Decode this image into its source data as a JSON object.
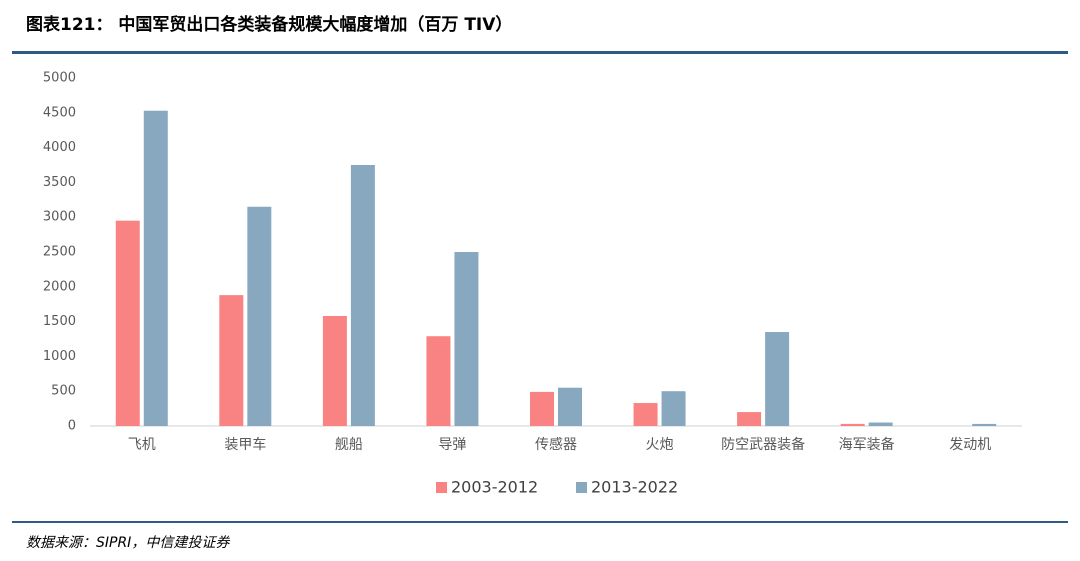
{
  "chart_data": {
    "type": "bar",
    "title": "图表121： 中国军贸出口各类装备规模大幅度增加（百万 TIV）",
    "source": "数据来源：SIPRI，中信建投证券",
    "categories": [
      "飞机",
      "装甲车",
      "舰船",
      "导弹",
      "传感器",
      "火炮",
      "防空武器装备",
      "海军装备",
      "发动机"
    ],
    "series": [
      {
        "name": "2003-2012",
        "color": "#f98282",
        "values": [
          2950,
          1880,
          1580,
          1290,
          490,
          330,
          200,
          30,
          0
        ]
      },
      {
        "name": "2013-2022",
        "color": "#88a8c0",
        "values": [
          4530,
          3150,
          3750,
          2500,
          550,
          500,
          1350,
          50,
          30
        ]
      }
    ],
    "ylim": [
      0,
      5000
    ],
    "yticks": [
      0,
      500,
      1000,
      1500,
      2000,
      2500,
      3000,
      3500,
      4000,
      4500,
      5000
    ],
    "grid": false,
    "legend": "bottom"
  }
}
